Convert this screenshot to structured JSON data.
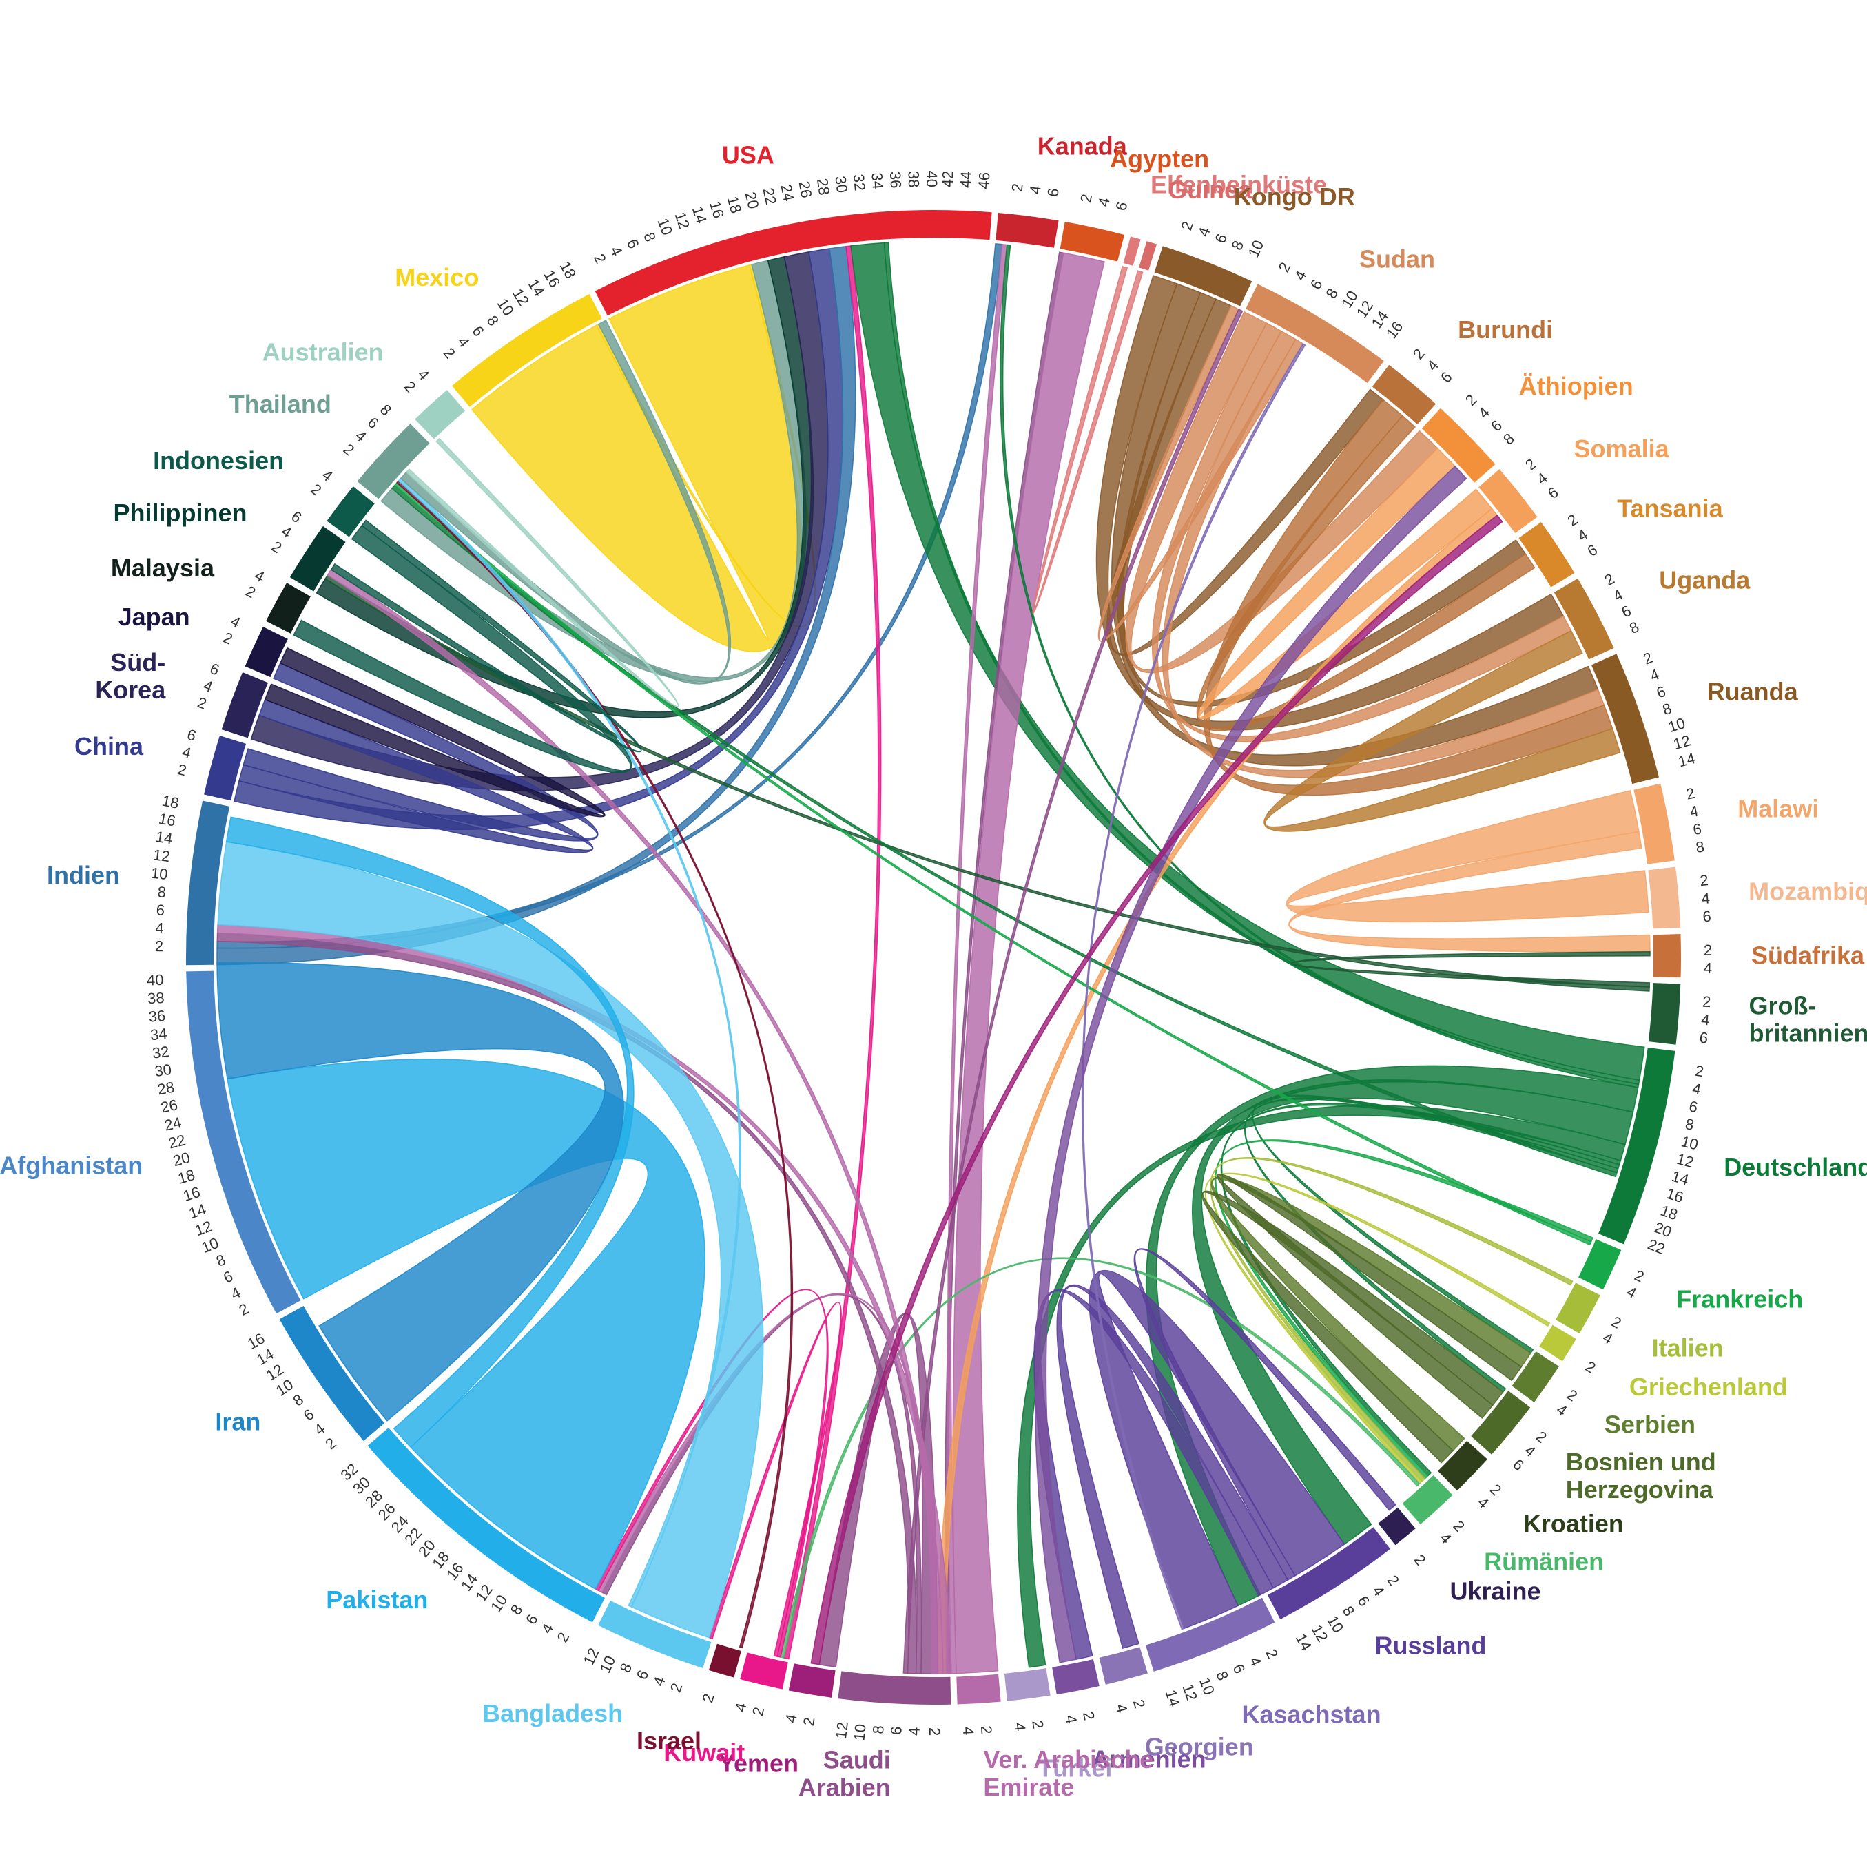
{
  "chart_data": {
    "type": "chord",
    "title": "",
    "unit_ticks_step": 2,
    "countries": [
      {
        "id": "usa",
        "name": "USA",
        "color": "#e3222d",
        "total": 47,
        "ticks": [
          2,
          4,
          6,
          8,
          10,
          12,
          14,
          16,
          18,
          20,
          22,
          24,
          26,
          28,
          30,
          32,
          34,
          36,
          38,
          40,
          42,
          44,
          46
        ]
      },
      {
        "id": "kanada",
        "name": "Kanada",
        "color": "#c9252f",
        "total": 7,
        "ticks": [
          2,
          4,
          6
        ]
      },
      {
        "id": "aegypten",
        "name": "Ägypten",
        "color": "#d9531e",
        "total": 7,
        "ticks": [
          2,
          4,
          6
        ]
      },
      {
        "id": "elfenbeinkueste",
        "name": "Elfenbeinküste",
        "color": "#e07a7a",
        "total": 1.2,
        "ticks": []
      },
      {
        "id": "guinea",
        "name": "Guinea",
        "color": "#d86a6a",
        "total": 1.2,
        "ticks": []
      },
      {
        "id": "kongo",
        "name": "Kongo DR",
        "color": "#8b5a2b",
        "total": 11,
        "ticks": [
          2,
          4,
          6,
          8,
          10
        ]
      },
      {
        "id": "sudan",
        "name": "Sudan",
        "color": "#d68a5a",
        "total": 17,
        "ticks": [
          2,
          4,
          6,
          8,
          10,
          12,
          14,
          16
        ]
      },
      {
        "id": "burundi",
        "name": "Burundi",
        "color": "#b8723a",
        "total": 7,
        "ticks": [
          2,
          4,
          6
        ]
      },
      {
        "id": "aethiopien",
        "name": "Äthiopien",
        "color": "#f2913a",
        "total": 9,
        "ticks": [
          2,
          4,
          6,
          8
        ]
      },
      {
        "id": "somalia",
        "name": "Somalia",
        "color": "#f4a05a",
        "total": 7,
        "ticks": [
          2,
          4,
          6
        ]
      },
      {
        "id": "tansania",
        "name": "Tansania",
        "color": "#d9892a",
        "total": 7,
        "ticks": [
          2,
          4,
          6
        ]
      },
      {
        "id": "uganda",
        "name": "Uganda",
        "color": "#b87a30",
        "total": 9,
        "ticks": [
          2,
          4,
          6,
          8
        ]
      },
      {
        "id": "ruanda",
        "name": "Ruanda",
        "color": "#8a5a25",
        "total": 15,
        "ticks": [
          2,
          4,
          6,
          8,
          10,
          12,
          14
        ]
      },
      {
        "id": "malawi",
        "name": "Malawi",
        "color": "#f4a56a",
        "total": 9,
        "ticks": [
          2,
          4,
          6,
          8
        ]
      },
      {
        "id": "mozambique",
        "name": "Mozambique",
        "color": "#f4b891",
        "total": 7,
        "ticks": [
          2,
          4,
          6
        ]
      },
      {
        "id": "suedafrika",
        "name": "Südafrika",
        "color": "#c8703a",
        "total": 5,
        "ticks": [
          2,
          4
        ]
      },
      {
        "id": "grossbritannien",
        "name": "Groß-\nbritannien",
        "color": "#1f5a35",
        "total": 7,
        "ticks": [
          2,
          4,
          6
        ]
      },
      {
        "id": "deutschland",
        "name": "Deutschland",
        "color": "#0e7a3a",
        "total": 23,
        "ticks": [
          2,
          4,
          6,
          8,
          10,
          12,
          14,
          16,
          18,
          20,
          22
        ]
      },
      {
        "id": "frankreich",
        "name": "Frankreich",
        "color": "#17a84a",
        "total": 5,
        "ticks": [
          2,
          4
        ]
      },
      {
        "id": "italien",
        "name": "Italien",
        "color": "#a6bd3a",
        "total": 5,
        "ticks": [
          2,
          4
        ]
      },
      {
        "id": "griechenland",
        "name": "Griechenland",
        "color": "#b9c93a",
        "total": 3,
        "ticks": [
          2
        ]
      },
      {
        "id": "serbien",
        "name": "Serbien",
        "color": "#5e7d2e",
        "total": 5,
        "ticks": [
          2,
          4
        ]
      },
      {
        "id": "bosnien",
        "name": "Bosnien und\nHerzegovina",
        "color": "#4e6a28",
        "total": 7,
        "ticks": [
          2,
          4,
          6
        ]
      },
      {
        "id": "kroatien",
        "name": "Kroatien",
        "color": "#2e3d1a",
        "total": 5,
        "ticks": [
          2,
          4
        ]
      },
      {
        "id": "rumaenien",
        "name": "Rümänien",
        "color": "#4ab86a",
        "total": 5,
        "ticks": [
          2,
          4
        ]
      },
      {
        "id": "ukraine",
        "name": "Ukraine",
        "color": "#2e1f52",
        "total": 3,
        "ticks": [
          2
        ]
      },
      {
        "id": "russland",
        "name": "Russland",
        "color": "#5a3f9a",
        "total": 15,
        "ticks": [
          2,
          4,
          6,
          8,
          10,
          12,
          14
        ]
      },
      {
        "id": "kasachstan",
        "name": "Kasachstan",
        "color": "#7f6ab5",
        "total": 15,
        "ticks": [
          2,
          4,
          6,
          8,
          10,
          12,
          14
        ]
      },
      {
        "id": "georgien",
        "name": "Georgien",
        "color": "#8a74b5",
        "total": 5,
        "ticks": [
          2,
          4
        ]
      },
      {
        "id": "armenien",
        "name": "Armenien",
        "color": "#7a4f9e",
        "total": 5,
        "ticks": [
          2,
          4
        ]
      },
      {
        "id": "tuerkei",
        "name": "Türkei",
        "color": "#a998c9",
        "total": 5,
        "ticks": [
          2,
          4
        ]
      },
      {
        "id": "vae",
        "name": "Ver. Arabische\nEmirate",
        "color": "#b56aaa",
        "total": 5,
        "ticks": [
          2,
          4
        ]
      },
      {
        "id": "saudi",
        "name": "Saudi\nArabien",
        "color": "#8e4e8a",
        "total": 13,
        "ticks": [
          2,
          4,
          6,
          8,
          10,
          12
        ]
      },
      {
        "id": "yemen",
        "name": "Yemen",
        "color": "#9e1f7a",
        "total": 5,
        "ticks": [
          2,
          4
        ]
      },
      {
        "id": "kuwait",
        "name": "Kuwait",
        "color": "#e8188a",
        "total": 5,
        "ticks": [
          2,
          4
        ]
      },
      {
        "id": "israel",
        "name": "Israel",
        "color": "#7a1030",
        "total": 3,
        "ticks": [
          2
        ]
      },
      {
        "id": "bangladesh",
        "name": "Bangladesh",
        "color": "#5cc8f0",
        "total": 13,
        "ticks": [
          2,
          4,
          6,
          8,
          10,
          12
        ]
      },
      {
        "id": "pakistan",
        "name": "Pakistan",
        "color": "#22aee8",
        "total": 33,
        "ticks": [
          2,
          4,
          6,
          8,
          10,
          12,
          14,
          16,
          18,
          20,
          22,
          24,
          26,
          28,
          30,
          32
        ]
      },
      {
        "id": "iran",
        "name": "Iran",
        "color": "#1d87c9",
        "total": 17,
        "ticks": [
          2,
          4,
          6,
          8,
          10,
          12,
          14,
          16
        ]
      },
      {
        "id": "afghanistan",
        "name": "Afghanistan",
        "color": "#4a86c8",
        "total": 41,
        "ticks": [
          2,
          4,
          6,
          8,
          10,
          12,
          14,
          16,
          18,
          20,
          22,
          24,
          26,
          28,
          30,
          32,
          34,
          36,
          38,
          40
        ]
      },
      {
        "id": "indien",
        "name": "Indien",
        "color": "#2f72a8",
        "total": 19,
        "ticks": [
          2,
          4,
          6,
          8,
          10,
          12,
          14,
          16,
          18
        ]
      },
      {
        "id": "china",
        "name": "China",
        "color": "#343a8e",
        "total": 7,
        "ticks": [
          2,
          4,
          6
        ]
      },
      {
        "id": "suedkorea",
        "name": "Süd-\nKorea",
        "color": "#2a2358",
        "total": 7,
        "ticks": [
          2,
          4,
          6
        ]
      },
      {
        "id": "japan",
        "name": "Japan",
        "color": "#1a1440",
        "total": 5,
        "ticks": [
          2,
          4
        ]
      },
      {
        "id": "malaysia",
        "name": "Malaysia",
        "color": "#12201c",
        "total": 5,
        "ticks": [
          2,
          4
        ]
      },
      {
        "id": "philippinen",
        "name": "Philippinen",
        "color": "#063a30",
        "total": 7,
        "ticks": [
          2,
          4,
          6
        ]
      },
      {
        "id": "indonesien",
        "name": "Indonesien",
        "color": "#0d5a4a",
        "total": 5,
        "ticks": [
          2,
          4
        ]
      },
      {
        "id": "thailand",
        "name": "Thailand",
        "color": "#6e9f92",
        "total": 9,
        "ticks": [
          2,
          4,
          6,
          8
        ]
      },
      {
        "id": "australien",
        "name": "Australien",
        "color": "#9fd1c3",
        "total": 5,
        "ticks": [
          2,
          4
        ]
      },
      {
        "id": "mexico",
        "name": "Mexico",
        "color": "#f7d417",
        "total": 19,
        "ticks": [
          2,
          4,
          6,
          8,
          10,
          12,
          14,
          16,
          18
        ]
      }
    ],
    "flows": [
      {
        "source": "mexico",
        "target": "usa",
        "value": 18
      },
      {
        "source": "mexico",
        "target": "usa",
        "value": 0.3
      },
      {
        "source": "thailand",
        "target": "usa",
        "value": 2
      },
      {
        "source": "philippinen",
        "target": "usa",
        "value": 2
      },
      {
        "source": "suedkorea",
        "target": "usa",
        "value": 3
      },
      {
        "source": "china",
        "target": "usa",
        "value": 2.5
      },
      {
        "source": "indien",
        "target": "usa",
        "value": 2
      },
      {
        "source": "indien",
        "target": "kanada",
        "value": 0.8
      },
      {
        "source": "kuwait",
        "target": "usa",
        "value": 0.6
      },
      {
        "source": "deutschland",
        "target": "usa",
        "value": 4
      },
      {
        "source": "deutschland",
        "target": "usa",
        "value": 0.5
      },
      {
        "source": "saudi",
        "target": "aegypten",
        "value": 0.5
      },
      {
        "source": "vae",
        "target": "aegypten",
        "value": 5
      },
      {
        "source": "vae",
        "target": "kanada",
        "value": 0.6
      },
      {
        "source": "deutschland",
        "target": "kanada",
        "value": 0.4
      },
      {
        "source": "elfenbeinkueste",
        "target": "guinea",
        "value": 0.6
      },
      {
        "source": "kongo",
        "target": "uganda",
        "value": 3
      },
      {
        "source": "kongo",
        "target": "ruanda",
        "value": 3
      },
      {
        "source": "kongo",
        "target": "tansania",
        "value": 2
      },
      {
        "source": "kongo",
        "target": "burundi",
        "value": 2
      },
      {
        "source": "sudan",
        "target": "aethiopien",
        "value": 3
      },
      {
        "source": "sudan",
        "target": "uganda",
        "value": 2
      },
      {
        "source": "sudan",
        "target": "ruanda",
        "value": 2
      },
      {
        "source": "sudan",
        "target": "kongo",
        "value": 1
      },
      {
        "source": "burundi",
        "target": "ruanda",
        "value": 3
      },
      {
        "source": "burundi",
        "target": "tansania",
        "value": 2
      },
      {
        "source": "somalia",
        "target": "aethiopien",
        "value": 3
      },
      {
        "source": "somalia",
        "target": "saudi",
        "value": 1
      },
      {
        "source": "uganda",
        "target": "ruanda",
        "value": 3
      },
      {
        "source": "malawi",
        "target": "mozambique",
        "value": 5
      },
      {
        "source": "malawi",
        "target": "suedafrika",
        "value": 2
      },
      {
        "source": "grossbritannien",
        "target": "suedafrika",
        "value": 0.5
      },
      {
        "source": "grossbritannien",
        "target": "philippinen",
        "value": 0.5
      },
      {
        "source": "deutschland",
        "target": "kasachstan",
        "value": 3
      },
      {
        "source": "deutschland",
        "target": "russland",
        "value": 4
      },
      {
        "source": "deutschland",
        "target": "tuerkei",
        "value": 2
      },
      {
        "source": "deutschland",
        "target": "rumaenien",
        "value": 0.5
      },
      {
        "source": "deutschland",
        "target": "bosnien",
        "value": 0.5
      },
      {
        "source": "deutschland",
        "target": "serbien",
        "value": 0.5
      },
      {
        "source": "deutschland",
        "target": "thailand",
        "value": 0.5
      },
      {
        "source": "frankreich",
        "target": "rumaenien",
        "value": 0.5
      },
      {
        "source": "frankreich",
        "target": "thailand",
        "value": 0.4
      },
      {
        "source": "italien",
        "target": "rumaenien",
        "value": 0.5
      },
      {
        "source": "griechenland",
        "target": "rumaenien",
        "value": 0.4
      },
      {
        "source": "serbien",
        "target": "kroatien",
        "value": 2
      },
      {
        "source": "bosnien",
        "target": "kroatien",
        "value": 2
      },
      {
        "source": "bosnien",
        "target": "serbien",
        "value": 2
      },
      {
        "source": "rumaenien",
        "target": "kuwait",
        "value": 0.4
      },
      {
        "source": "russland",
        "target": "kasachstan",
        "value": 7
      },
      {
        "source": "russland",
        "target": "ukraine",
        "value": 1
      },
      {
        "source": "russland",
        "target": "georgien",
        "value": 2
      },
      {
        "source": "russland",
        "target": "armenien",
        "value": 2
      },
      {
        "source": "kasachstan",
        "target": "sudan",
        "value": 0.3
      },
      {
        "source": "armenien",
        "target": "aethiopien",
        "value": 2
      },
      {
        "source": "saudi",
        "target": "yemen",
        "value": 2
      },
      {
        "source": "saudi",
        "target": "pakistan",
        "value": 0.6
      },
      {
        "source": "saudi",
        "target": "indien",
        "value": 1
      },
      {
        "source": "saudi",
        "target": "kongo",
        "value": 0.5
      },
      {
        "source": "vae",
        "target": "indien",
        "value": 1
      },
      {
        "source": "vae",
        "target": "philippinen",
        "value": 0.8
      },
      {
        "source": "vae",
        "target": "pakistan",
        "value": 0.5
      },
      {
        "source": "kuwait",
        "target": "pakistan",
        "value": 0.4
      },
      {
        "source": "kuwait",
        "target": "bangladesh",
        "value": 0.4
      },
      {
        "source": "yemen",
        "target": "somalia",
        "value": 1
      },
      {
        "source": "israel",
        "target": "thailand",
        "value": 0.3
      },
      {
        "source": "bangladesh",
        "target": "indien",
        "value": 10
      },
      {
        "source": "bangladesh",
        "target": "thailand",
        "value": 0.4
      },
      {
        "source": "pakistan",
        "target": "afghanistan",
        "value": 28
      },
      {
        "source": "pakistan",
        "target": "indien",
        "value": 3
      },
      {
        "source": "iran",
        "target": "afghanistan",
        "value": 14
      },
      {
        "source": "thailand",
        "target": "mexico",
        "value": 1
      },
      {
        "source": "indonesien",
        "target": "malaysia",
        "value": 2
      },
      {
        "source": "indonesien",
        "target": "philippinen",
        "value": 0.8
      },
      {
        "source": "china",
        "target": "suedkorea",
        "value": 2
      },
      {
        "source": "china",
        "target": "japan",
        "value": 2
      },
      {
        "source": "japan",
        "target": "suedkorea",
        "value": 2
      },
      {
        "source": "australien",
        "target": "thailand",
        "value": 0.5
      }
    ]
  }
}
